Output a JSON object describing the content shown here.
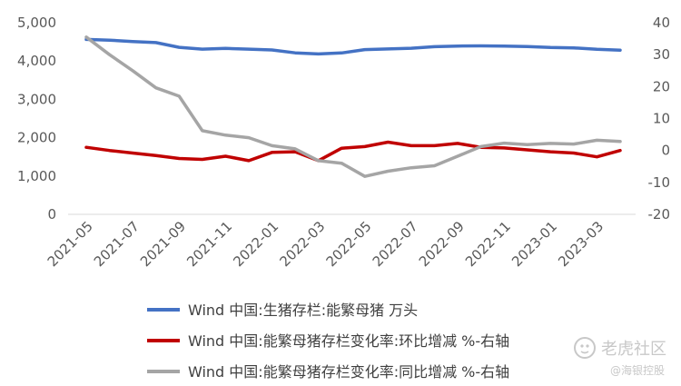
{
  "chart_data": {
    "type": "line",
    "title": "",
    "xlabel": "",
    "ylabel": "",
    "ylim": [
      0,
      5000
    ],
    "y2lim": [
      -20,
      40
    ],
    "yticks": [
      0,
      1000,
      2000,
      3000,
      4000,
      5000
    ],
    "ytick_labels": [
      "0",
      "1,000",
      "2,000",
      "3,000",
      "4,000",
      "5,000"
    ],
    "y2ticks": [
      -20,
      -10,
      0,
      10,
      20,
      30,
      40
    ],
    "y2tick_labels": [
      "-20",
      "-10",
      "0",
      "10",
      "20",
      "30",
      "40"
    ],
    "x": [
      "2021-05",
      "2021-06",
      "2021-07",
      "2021-08",
      "2021-09",
      "2021-10",
      "2021-11",
      "2021-12",
      "2022-01",
      "2022-02",
      "2022-03",
      "2022-04",
      "2022-05",
      "2022-06",
      "2022-07",
      "2022-08",
      "2022-09",
      "2022-10",
      "2022-11",
      "2022-12",
      "2023-01",
      "2023-02",
      "2023-03",
      "2023-04"
    ],
    "x_tick_labels": [
      "2021-05",
      "2021-07",
      "2021-09",
      "2021-11",
      "2022-01",
      "2022-03",
      "2022-05",
      "2022-07",
      "2022-09",
      "2022-11",
      "2023-01",
      "2023-03"
    ],
    "grid": false,
    "legend_position": "bottom",
    "series": [
      {
        "name": "Wind 中国:生猪存栏:能繁母猪 万头",
        "axis": "left",
        "color": "#4472C4",
        "values": [
          4564,
          4545,
          4507,
          4480,
          4358,
          4310,
          4329,
          4310,
          4290,
          4214,
          4185,
          4211,
          4298,
          4315,
          4335,
          4375,
          4390,
          4395,
          4390,
          4379,
          4353,
          4343,
          4305,
          4284
        ]
      },
      {
        "name": "Wind 中国:能繁母猪存栏变化率:环比增减 %-右轴",
        "axis": "right",
        "color": "#C00000",
        "values": [
          1.0,
          0.0,
          -0.8,
          -1.6,
          -2.5,
          -2.8,
          -1.8,
          -3.2,
          -0.6,
          -0.4,
          -3.2,
          0.7,
          1.2,
          2.6,
          1.5,
          1.5,
          2.2,
          1.0,
          0.8,
          0.2,
          -0.4,
          -0.8,
          -2.0,
          0.0
        ]
      },
      {
        "name": "Wind 中国:能繁母猪存栏变化率:同比增减 %-右轴",
        "axis": "right",
        "color": "#A5A5A5",
        "values": [
          35.5,
          30.0,
          25.0,
          19.6,
          17.0,
          6.2,
          4.8,
          4.0,
          1.5,
          0.5,
          -3.2,
          -4.0,
          -8.1,
          -6.5,
          -5.4,
          -4.8,
          -1.8,
          1.2,
          2.3,
          1.8,
          2.2,
          2.0,
          3.2,
          2.8
        ]
      }
    ]
  },
  "watermark": {
    "text1": "老虎社区",
    "text2": "@海银控股"
  }
}
